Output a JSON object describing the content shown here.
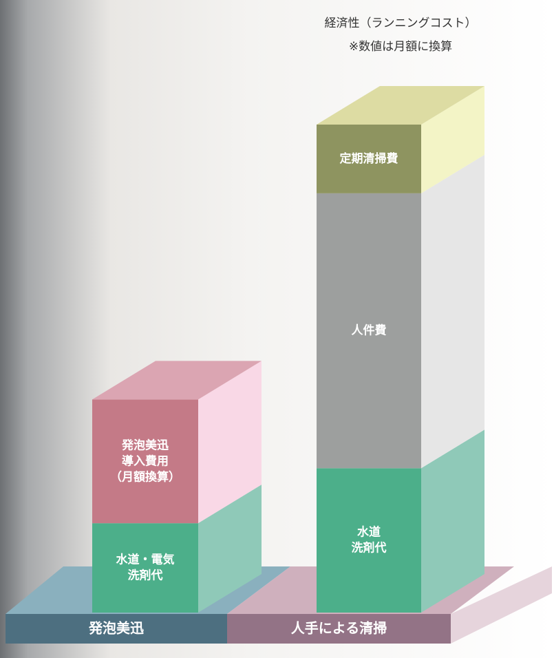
{
  "chart_data": {
    "type": "bar3d_stacked",
    "title": "経済性（ランニングコスト）",
    "subtitle": "※数値は月額に換算",
    "ylim": [
      0,
      71
    ],
    "bars": [
      {
        "label": "発泡美迅",
        "color": "#4d6f80",
        "base_color": "#8ab0be",
        "segments": [
          {
            "label": [
              "水道・電気",
              "洗剤代"
            ],
            "value": 13,
            "color": "#4caf8a",
            "side_color": "#8fc9b8",
            "top_color": "#6fbf9f"
          },
          {
            "label": [
              "発泡美迅",
              "導入費用",
              "（月額換算）"
            ],
            "value": 18,
            "color": "#c47a87",
            "side_color": "#f9d8e6",
            "top_color": "#dba5b2"
          }
        ]
      },
      {
        "label": "人手による清掃",
        "color": "#937386",
        "base_color": "#cfb0bd",
        "segments": [
          {
            "label": [
              "水道",
              "洗剤代"
            ],
            "value": 21,
            "color": "#4caf8a",
            "side_color": "#8fc9b8",
            "top_color": "#6fbf9f"
          },
          {
            "label": [
              "人件費"
            ],
            "value": 40,
            "color": "#9d9f9e",
            "side_color": "#e6e6e6",
            "top_color": "#cfcfcf"
          },
          {
            "label": [
              "定期清掃費"
            ],
            "value": 10,
            "color": "#8e9460",
            "side_color": "#f3f4c6",
            "top_color": "#dddca3"
          }
        ]
      }
    ]
  }
}
